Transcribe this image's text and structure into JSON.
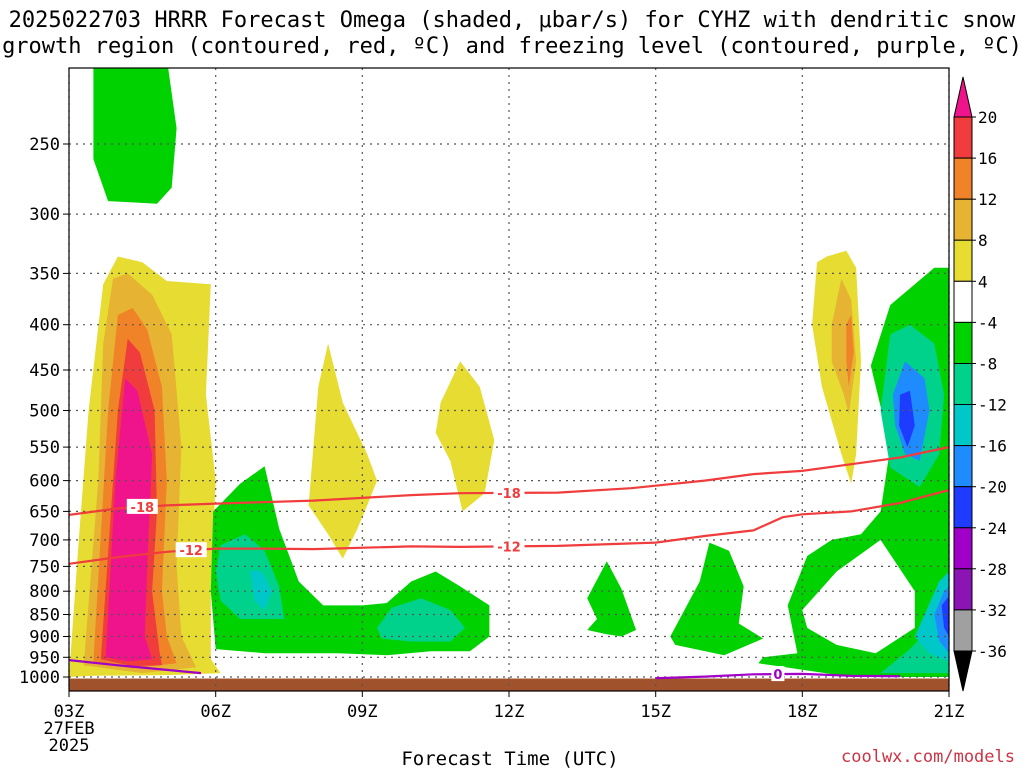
{
  "title_line1": "2025022703 HRRR Forecast Omega (shaded, μbar/s) for CYHZ with dendritic snow",
  "title_line2": "growth region (contoured, red, ºC) and freezing level (contoured, purple, ºC)",
  "xlabel": "Forecast Time (UTC)",
  "credit": "coolwx.com/models",
  "colors": {
    "magenta": "#f0148c",
    "red": "#f03c3c",
    "orange": "#f08228",
    "gold": "#e6b432",
    "yellow": "#e6dc32",
    "green": "#00d200",
    "teal": "#00d28c",
    "cyan": "#00c8c8",
    "blue": "#1e8cff",
    "dblue": "#1e3cff",
    "purple": "#a000c8",
    "violet": "#8c14b4",
    "gray": "#a0a0a0",
    "black": "#000000",
    "ground": "#a0522d",
    "dgz_contour": "#f03c3c",
    "freezing_contour": "#a000c8"
  },
  "chart_data": {
    "type": "contour",
    "xlabel": "Forecast Time (UTC)",
    "x_ticks": [
      "03Z\n27FEB\n2025",
      "06Z",
      "09Z",
      "12Z",
      "15Z",
      "18Z",
      "21Z"
    ],
    "xlim_hours": [
      3,
      21
    ],
    "y_ticks_hpa": [
      250,
      300,
      350,
      400,
      450,
      500,
      550,
      600,
      650,
      700,
      750,
      800,
      850,
      900,
      950,
      1000
    ],
    "ylim_hpa": [
      200,
      1010
    ],
    "grid": true,
    "colorbar": {
      "levels": [
        20,
        16,
        12,
        8,
        4,
        -4,
        -8,
        -12,
        -16,
        -20,
        -24,
        -28,
        -32,
        -36
      ],
      "colors": [
        "#f0148c",
        "#f03c3c",
        "#f08228",
        "#e6b432",
        "#e6dc32",
        "#ffffff",
        "#00d200",
        "#00d28c",
        "#00c8c8",
        "#1e8cff",
        "#1e3cff",
        "#a000c8",
        "#8c14b4",
        "#a0a0a0",
        "#000000"
      ]
    },
    "contours": [
      {
        "label": "-18",
        "color": "red",
        "points": [
          [
            3,
            656
          ],
          [
            4,
            645
          ],
          [
            5,
            640
          ],
          [
            6,
            637
          ],
          [
            8,
            632
          ],
          [
            10,
            623
          ],
          [
            11,
            620
          ],
          [
            13,
            619
          ],
          [
            14.5,
            612
          ],
          [
            16,
            600
          ],
          [
            17,
            590
          ],
          [
            18,
            585
          ],
          [
            19,
            575
          ],
          [
            20,
            565
          ],
          [
            21,
            550
          ]
        ]
      },
      {
        "label": "-12",
        "color": "red",
        "points": [
          [
            3,
            745
          ],
          [
            4,
            732
          ],
          [
            5,
            722
          ],
          [
            6,
            716
          ],
          [
            7,
            716
          ],
          [
            8,
            717
          ],
          [
            10,
            712
          ],
          [
            11,
            713
          ],
          [
            13,
            711
          ],
          [
            15,
            705
          ],
          [
            16,
            693
          ],
          [
            17,
            683
          ],
          [
            17.6,
            660
          ],
          [
            18,
            655
          ],
          [
            19,
            650
          ],
          [
            20,
            636
          ],
          [
            21,
            615
          ]
        ]
      },
      {
        "label": "0",
        "color": "purple",
        "points": [
          [
            3,
            957
          ],
          [
            4,
            970
          ],
          [
            5.7,
            990
          ]
        ]
      },
      {
        "label": "0",
        "color": "purple",
        "points": [
          [
            15,
            1003
          ],
          [
            16,
            999
          ],
          [
            17,
            993
          ],
          [
            18,
            992
          ],
          [
            19,
            997
          ],
          [
            20,
            998
          ]
        ]
      }
    ],
    "shaded_regions": [
      {
        "color": "green",
        "points": [
          [
            3.5,
            200
          ],
          [
            5,
            200
          ],
          [
            5.2,
            240
          ],
          [
            5.1,
            280
          ],
          [
            4.8,
            292
          ],
          [
            4.3,
            291
          ],
          [
            3.8,
            290
          ],
          [
            3.5,
            260
          ]
        ]
      },
      {
        "color": "yellow",
        "points": [
          [
            3,
            1000
          ],
          [
            3.2,
            700
          ],
          [
            3.4,
            500
          ],
          [
            3.7,
            360
          ],
          [
            4,
            335
          ],
          [
            4.5,
            340
          ],
          [
            5,
            357
          ],
          [
            5.9,
            360
          ],
          [
            5.8,
            480
          ],
          [
            6,
            600
          ],
          [
            5.9,
            800
          ],
          [
            5.9,
            955
          ],
          [
            6.1,
            990
          ],
          [
            5,
            995
          ],
          [
            3.5,
            997
          ]
        ]
      },
      {
        "color": "gold",
        "points": [
          [
            3.3,
            970
          ],
          [
            3.6,
            600
          ],
          [
            3.7,
            420
          ],
          [
            3.9,
            355
          ],
          [
            4.2,
            350
          ],
          [
            4.7,
            370
          ],
          [
            5.1,
            410
          ],
          [
            5.3,
            550
          ],
          [
            5.2,
            750
          ],
          [
            5.3,
            900
          ],
          [
            5.6,
            975
          ],
          [
            4.5,
            990
          ]
        ]
      },
      {
        "color": "orange",
        "points": [
          [
            3.5,
            960
          ],
          [
            3.8,
            500
          ],
          [
            4,
            390
          ],
          [
            4.3,
            383
          ],
          [
            4.6,
            405
          ],
          [
            4.9,
            470
          ],
          [
            5,
            600
          ],
          [
            4.9,
            800
          ],
          [
            5,
            900
          ],
          [
            5.2,
            965
          ],
          [
            4.3,
            978
          ]
        ]
      },
      {
        "color": "red",
        "points": [
          [
            3.65,
            955
          ],
          [
            4,
            500
          ],
          [
            4.2,
            415
          ],
          [
            4.45,
            430
          ],
          [
            4.75,
            500
          ],
          [
            4.8,
            650
          ],
          [
            4.7,
            800
          ],
          [
            4.85,
            935
          ],
          [
            4.9,
            970
          ],
          [
            4.3,
            972
          ]
        ]
      },
      {
        "color": "magenta",
        "points": [
          [
            3.75,
            950
          ],
          [
            3.95,
            600
          ],
          [
            4.15,
            460
          ],
          [
            4.4,
            475
          ],
          [
            4.7,
            560
          ],
          [
            4.6,
            750
          ],
          [
            4.55,
            900
          ],
          [
            4.7,
            955
          ],
          [
            4.2,
            960
          ]
        ]
      },
      {
        "color": "green",
        "points": [
          [
            5.95,
            650
          ],
          [
            6.5,
            605
          ],
          [
            7,
            578
          ],
          [
            7.3,
            680
          ],
          [
            7.7,
            780
          ],
          [
            8.2,
            830
          ],
          [
            9,
            830
          ],
          [
            9.5,
            825
          ],
          [
            10,
            780
          ],
          [
            10.5,
            760
          ],
          [
            11,
            790
          ],
          [
            11.6,
            830
          ],
          [
            11.6,
            900
          ],
          [
            11.2,
            935
          ],
          [
            10.4,
            935
          ],
          [
            9.5,
            945
          ],
          [
            8.5,
            940
          ],
          [
            7,
            940
          ],
          [
            6,
            930
          ],
          [
            5.9,
            800
          ]
        ]
      },
      {
        "color": "teal",
        "points": [
          [
            6.1,
            710
          ],
          [
            6.6,
            690
          ],
          [
            7,
            720
          ],
          [
            7.3,
            790
          ],
          [
            7.4,
            860
          ],
          [
            7,
            860
          ],
          [
            6.5,
            860
          ],
          [
            6.1,
            820
          ],
          [
            6,
            760
          ]
        ]
      },
      {
        "color": "cyan",
        "points": [
          [
            6.7,
            758
          ],
          [
            6.95,
            760
          ],
          [
            7.15,
            800
          ],
          [
            7,
            840
          ],
          [
            6.8,
            820
          ]
        ]
      },
      {
        "color": "teal",
        "points": [
          [
            9.3,
            880
          ],
          [
            9.6,
            835
          ],
          [
            10.2,
            815
          ],
          [
            10.8,
            840
          ],
          [
            11.1,
            880
          ],
          [
            10.8,
            912
          ],
          [
            10,
            912
          ],
          [
            9.4,
            905
          ]
        ]
      },
      {
        "color": "green",
        "points": [
          [
            13.6,
            815
          ],
          [
            14,
            740
          ],
          [
            14.3,
            795
          ],
          [
            14.6,
            885
          ],
          [
            14.3,
            900
          ],
          [
            14,
            895
          ],
          [
            13.6,
            885
          ],
          [
            13.8,
            860
          ]
        ]
      },
      {
        "color": "green",
        "points": [
          [
            15.3,
            900
          ],
          [
            15.9,
            780
          ],
          [
            16.1,
            705
          ],
          [
            16.5,
            720
          ],
          [
            16.8,
            790
          ],
          [
            16.7,
            870
          ],
          [
            17.2,
            905
          ],
          [
            16.4,
            945
          ],
          [
            15.4,
            920
          ]
        ]
      },
      {
        "color": "green",
        "points": [
          [
            17.2,
            950
          ],
          [
            17.9,
            940
          ],
          [
            17.7,
            830
          ],
          [
            18.1,
            730
          ],
          [
            18.6,
            700
          ],
          [
            19.2,
            690
          ],
          [
            19.6,
            650
          ],
          [
            19.8,
            550
          ],
          [
            19.4,
            445
          ],
          [
            19.8,
            380
          ],
          [
            20.7,
            345
          ],
          [
            21,
            345
          ],
          [
            21,
            1000
          ],
          [
            19,
            1000
          ],
          [
            17.5,
            972
          ],
          [
            17.1,
            965
          ]
        ]
      },
      {
        "color": "white",
        "points": [
          [
            18,
            840
          ],
          [
            18.7,
            760
          ],
          [
            19.6,
            700
          ],
          [
            20.3,
            800
          ],
          [
            20.3,
            880
          ],
          [
            19.5,
            940
          ],
          [
            18.7,
            920
          ],
          [
            18.1,
            880
          ]
        ]
      },
      {
        "color": "teal",
        "points": [
          [
            19.6,
            500
          ],
          [
            19.8,
            410
          ],
          [
            20.2,
            400
          ],
          [
            20.7,
            420
          ],
          [
            20.9,
            480
          ],
          [
            20.8,
            560
          ],
          [
            20.4,
            610
          ],
          [
            19.8,
            580
          ]
        ]
      },
      {
        "color": "blue",
        "points": [
          [
            19.85,
            480
          ],
          [
            20.1,
            440
          ],
          [
            20.5,
            460
          ],
          [
            20.6,
            500
          ],
          [
            20.4,
            570
          ],
          [
            20.1,
            560
          ],
          [
            19.9,
            520
          ]
        ]
      },
      {
        "color": "dblue",
        "points": [
          [
            20,
            480
          ],
          [
            20.2,
            475
          ],
          [
            20.3,
            520
          ],
          [
            20.15,
            550
          ],
          [
            19.98,
            520
          ]
        ]
      },
      {
        "color": "teal",
        "points": [
          [
            19.6,
            990
          ],
          [
            20.2,
            930
          ],
          [
            20.7,
            870
          ],
          [
            21,
            860
          ],
          [
            21,
            990
          ]
        ]
      },
      {
        "color": "cyan",
        "points": [
          [
            20.3,
            900
          ],
          [
            20.8,
            780
          ],
          [
            21,
            760
          ],
          [
            21,
            960
          ],
          [
            20.6,
            940
          ]
        ]
      },
      {
        "color": "blue",
        "points": [
          [
            20.7,
            850
          ],
          [
            20.9,
            800
          ],
          [
            21,
            790
          ],
          [
            21,
            940
          ],
          [
            20.8,
            910
          ]
        ]
      },
      {
        "color": "dblue",
        "points": [
          [
            20.85,
            830
          ],
          [
            21,
            810
          ],
          [
            21,
            900
          ],
          [
            20.9,
            880
          ]
        ]
      },
      {
        "color": "yellow",
        "points": [
          [
            7.9,
            640
          ],
          [
            8.1,
            470
          ],
          [
            8.3,
            420
          ],
          [
            8.6,
            490
          ],
          [
            9.1,
            560
          ],
          [
            9.3,
            600
          ],
          [
            9.1,
            640
          ],
          [
            8.9,
            680
          ],
          [
            8.6,
            735
          ],
          [
            8.3,
            690
          ]
        ]
      },
      {
        "color": "yellow",
        "points": [
          [
            10.6,
            490
          ],
          [
            11,
            440
          ],
          [
            11.4,
            470
          ],
          [
            11.7,
            540
          ],
          [
            11.5,
            620
          ],
          [
            11.05,
            650
          ],
          [
            10.8,
            570
          ],
          [
            10.5,
            530
          ]
        ]
      },
      {
        "color": "yellow",
        "points": [
          [
            18.3,
            340
          ],
          [
            18.5,
            335
          ],
          [
            18.9,
            330
          ],
          [
            19.1,
            345
          ],
          [
            19.2,
            440
          ],
          [
            19.1,
            560
          ],
          [
            19,
            605
          ],
          [
            18.8,
            560
          ],
          [
            18.4,
            470
          ],
          [
            18.2,
            400
          ]
        ]
      },
      {
        "color": "gold",
        "points": [
          [
            18.6,
            400
          ],
          [
            18.8,
            355
          ],
          [
            19,
            375
          ],
          [
            19.1,
            440
          ],
          [
            18.95,
            505
          ],
          [
            18.85,
            480
          ],
          [
            18.6,
            440
          ]
        ]
      },
      {
        "color": "orange",
        "points": [
          [
            18.9,
            400
          ],
          [
            19,
            390
          ],
          [
            19.05,
            430
          ],
          [
            18.95,
            470
          ],
          [
            18.9,
            440
          ]
        ]
      }
    ]
  }
}
